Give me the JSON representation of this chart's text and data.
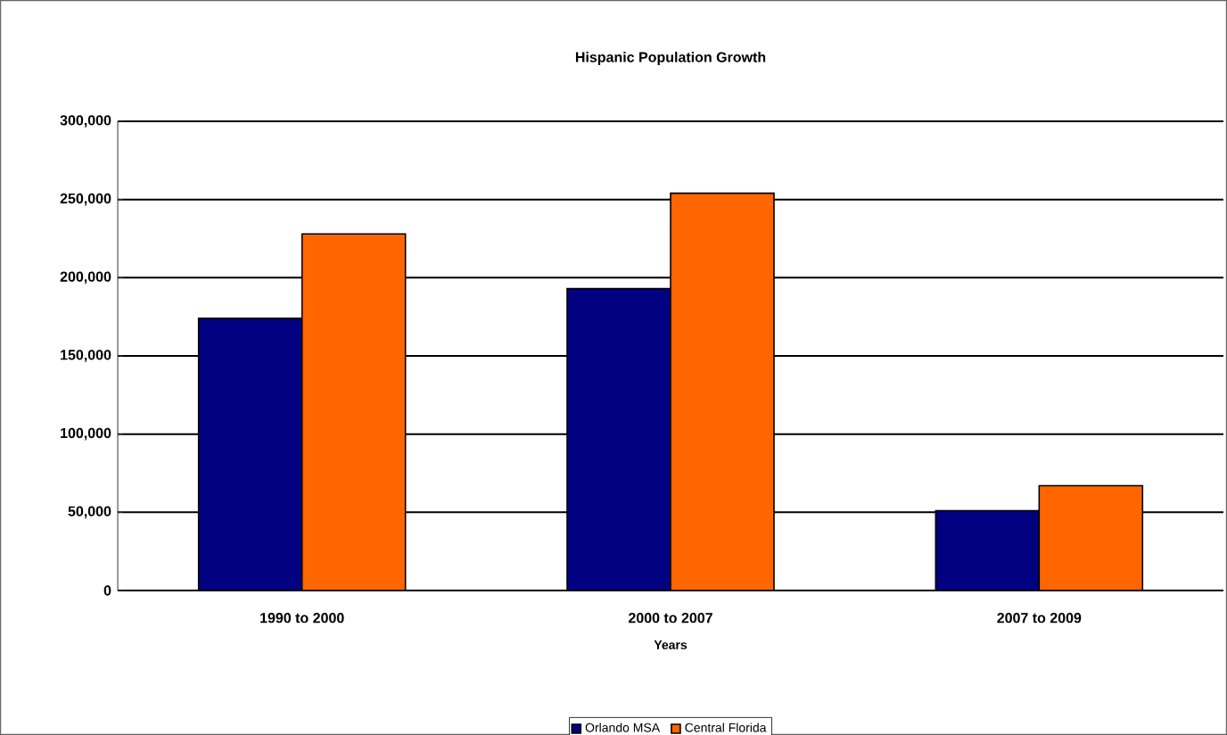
{
  "chart_data": {
    "type": "bar",
    "title": "Hispanic Population Growth",
    "xlabel": "Years",
    "categories": [
      "1990 to 2000",
      "2000 to 2007",
      "2007 to 2009"
    ],
    "series": [
      {
        "name": "Orlando MSA",
        "color": "#000080",
        "values": [
          174000,
          193000,
          51000
        ]
      },
      {
        "name": "Central Florida",
        "color": "#ff6600",
        "values": [
          228000,
          254000,
          67000
        ]
      }
    ],
    "ylim": [
      0,
      300000
    ],
    "yticks": [
      {
        "value": 0,
        "label": "0"
      },
      {
        "value": 50000,
        "label": "50,000"
      },
      {
        "value": 100000,
        "label": "100,000"
      },
      {
        "value": 150000,
        "label": "150,000"
      },
      {
        "value": 200000,
        "label": "200,000"
      },
      {
        "value": 250000,
        "label": "250,000"
      },
      {
        "value": 300000,
        "label": "300,000"
      }
    ],
    "grid": "y",
    "legend": "bottom"
  }
}
